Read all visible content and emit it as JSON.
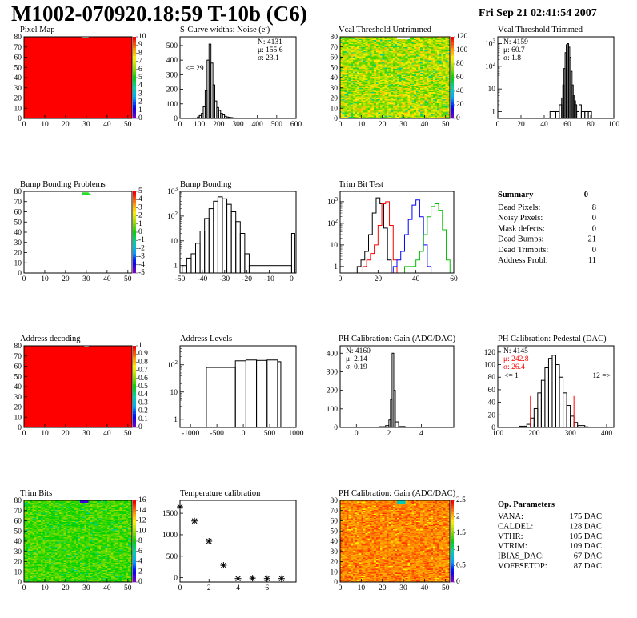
{
  "header": {
    "title": "M1002-070920.18:59 T-10b (C6)",
    "date": "Fri Sep 21 02:41:54 2007"
  },
  "chart_data": [
    {
      "id": "pixel_map",
      "type": "heatmap",
      "title": "Pixel Map",
      "xlim": [
        0,
        52
      ],
      "ylim": [
        0,
        80
      ],
      "xticks": [
        0,
        10,
        20,
        30,
        40,
        50
      ],
      "yticks": [
        0,
        10,
        20,
        30,
        40,
        50,
        60,
        70,
        80
      ],
      "palette_ticks": [
        "0",
        "1",
        "2",
        "3",
        "4",
        "5",
        "6",
        "7",
        "8",
        "9",
        "10"
      ],
      "palette_range": [
        0,
        10
      ],
      "dominant_value": 10,
      "dominant_color": "#ff0000",
      "missing_pixels": [
        [
          28,
          79
        ],
        [
          29,
          79
        ],
        [
          30,
          79
        ]
      ]
    },
    {
      "id": "scurve_widths",
      "type": "bar",
      "title": "S-Curve widths: Noise (e^{-})",
      "xlim": [
        0,
        600
      ],
      "ylim": [
        0,
        560
      ],
      "xticks": [
        0,
        100,
        200,
        300,
        400,
        500,
        600
      ],
      "yticks": [
        0,
        100,
        200,
        300,
        400,
        500
      ],
      "stats": {
        "N": "4131",
        "mean": "155.6",
        "sigma": "23.1"
      },
      "annotation": "<= 29",
      "x": [
        80,
        90,
        100,
        110,
        120,
        130,
        140,
        150,
        160,
        170,
        180,
        190,
        200,
        210,
        220,
        230,
        240,
        250,
        260,
        270,
        280,
        290,
        300,
        320,
        340,
        420,
        530
      ],
      "values": [
        0,
        10,
        20,
        35,
        80,
        190,
        400,
        510,
        380,
        230,
        120,
        75,
        55,
        35,
        25,
        15,
        10,
        8,
        6,
        4,
        3,
        2,
        2,
        1,
        1,
        1,
        1
      ]
    },
    {
      "id": "vcal_untrimmed",
      "type": "heatmap",
      "title": "Vcal Threshold Untrimmed",
      "xlim": [
        0,
        52
      ],
      "ylim": [
        0,
        80
      ],
      "xticks": [
        0,
        10,
        20,
        30,
        40,
        50
      ],
      "yticks": [
        0,
        10,
        20,
        30,
        40,
        50,
        60,
        70,
        80
      ],
      "palette_ticks": [
        "0",
        "20",
        "40",
        "60",
        "80",
        "100",
        "120"
      ],
      "palette_range": [
        0,
        120
      ],
      "value_range": [
        40,
        110
      ]
    },
    {
      "id": "vcal_trimmed",
      "type": "bar",
      "title": "Vcal Threshold Trimmed",
      "xlim": [
        0,
        100
      ],
      "ylog": true,
      "ylim": [
        0.5,
        2000
      ],
      "xticks": [
        0,
        20,
        40,
        60,
        80,
        100
      ],
      "ytick_labels": [
        "1",
        "10",
        "10^{2}",
        "10^{3}"
      ],
      "stats": {
        "N": "4159",
        "mean": "60.7",
        "sigma": "1.8"
      },
      "x": [
        45,
        50,
        53,
        55,
        56,
        57,
        58,
        59,
        60,
        61,
        62,
        63,
        64,
        65,
        66,
        67,
        68,
        70,
        72,
        75,
        78
      ],
      "values": [
        1,
        1,
        2,
        4,
        15,
        80,
        400,
        900,
        1000,
        700,
        250,
        60,
        15,
        5,
        3,
        2,
        1,
        2,
        1,
        1,
        1
      ]
    },
    {
      "id": "bump_bonding_problems",
      "type": "heatmap",
      "title": "Bump Bonding Problems",
      "xlim": [
        0,
        52
      ],
      "ylim": [
        0,
        80
      ],
      "xticks": [
        0,
        10,
        20,
        30,
        40,
        50
      ],
      "yticks": [
        0,
        10,
        20,
        30,
        40,
        50,
        60,
        70,
        80
      ],
      "palette_ticks": [
        "-5",
        "-4",
        "-3",
        "-2",
        "-1",
        "0",
        "1",
        "2",
        "3",
        "4",
        "5"
      ],
      "palette_range": [
        -5,
        5
      ],
      "problem_pixels": [
        [
          28,
          78
        ],
        [
          29,
          78
        ],
        [
          30,
          78
        ],
        [
          28,
          77
        ],
        [
          29,
          77
        ],
        [
          30,
          77
        ],
        [
          31,
          77
        ]
      ]
    },
    {
      "id": "bump_bonding",
      "type": "bar",
      "title": "Bump Bonding",
      "xlim": [
        -50,
        2
      ],
      "ylog": true,
      "ylim": [
        0.5,
        1000
      ],
      "xticks": [
        -50,
        -40,
        -30,
        -20,
        -10,
        0
      ],
      "ytick_labels": [
        "1",
        "10",
        "10^{2}",
        "10^{3}"
      ],
      "x": [
        -49,
        -47,
        -45,
        -43,
        -41,
        -39,
        -37,
        -35,
        -33,
        -31,
        -29,
        -27,
        -25,
        -23,
        -21,
        -19,
        0
      ],
      "values": [
        1,
        2,
        3,
        8,
        25,
        80,
        200,
        400,
        600,
        500,
        300,
        150,
        60,
        20,
        3,
        1,
        20
      ]
    },
    {
      "id": "trim_bit_test",
      "type": "line",
      "title": "Trim Bit Test",
      "xlim": [
        0,
        60
      ],
      "ylog": true,
      "ylim": [
        0.5,
        3000
      ],
      "xticks": [
        0,
        20,
        40,
        60
      ],
      "ytick_labels": [
        "1",
        "10",
        "10^{2}",
        "10^{3}"
      ],
      "series": [
        {
          "color": "#000000",
          "x": [
            9,
            11,
            13,
            15,
            17,
            19,
            21,
            23,
            25
          ],
          "values": [
            1,
            2,
            5,
            30,
            300,
            1500,
            800,
            60,
            2
          ]
        },
        {
          "color": "#ff0000",
          "x": [
            12,
            14,
            16,
            18,
            20,
            22,
            24,
            26,
            28
          ],
          "values": [
            1,
            2,
            4,
            10,
            80,
            800,
            1000,
            80,
            2
          ]
        },
        {
          "color": "#0000ff",
          "x": [
            28,
            30,
            32,
            34,
            36,
            38,
            40,
            42,
            44,
            46
          ],
          "values": [
            1,
            2,
            5,
            30,
            150,
            700,
            1200,
            200,
            10,
            1
          ]
        },
        {
          "color": "#00c000",
          "x": [
            34,
            37,
            40,
            42,
            44,
            46,
            48,
            50,
            52,
            54,
            56
          ],
          "values": [
            1,
            1,
            2,
            5,
            30,
            200,
            600,
            800,
            400,
            50,
            2
          ]
        }
      ]
    },
    {
      "id": "address_decoding",
      "type": "heatmap",
      "title": "Address decoding",
      "xlim": [
        0,
        52
      ],
      "ylim": [
        0,
        80
      ],
      "xticks": [
        0,
        10,
        20,
        30,
        40,
        50
      ],
      "yticks": [
        0,
        10,
        20,
        30,
        40,
        50,
        60,
        70,
        80
      ],
      "palette_ticks": [
        "0",
        "0.1",
        "0.2",
        "0.3",
        "0.4",
        "0.5",
        "0.6",
        "0.7",
        "0.8",
        "0.9",
        "1"
      ],
      "palette_range": [
        0,
        1
      ],
      "dominant_value": 1,
      "dominant_color": "#ff0000",
      "missing_pixels": [
        [
          29,
          79
        ],
        [
          30,
          79
        ]
      ]
    },
    {
      "id": "address_levels",
      "type": "bar",
      "title": "Address Levels",
      "xlim": [
        -1200,
        1000
      ],
      "ylog": true,
      "ylim": [
        0.5,
        500
      ],
      "xticks": [
        -1000,
        -500,
        0,
        500,
        1000
      ],
      "ytick_labels": [
        "1",
        "10",
        "10^{2}"
      ],
      "x": [
        -700,
        -150,
        50,
        250,
        450,
        650
      ],
      "values": [
        80,
        140,
        150,
        145,
        150,
        130
      ]
    },
    {
      "id": "ph_gain",
      "type": "bar",
      "title": "PH Calibration: Gain (ADC/DAC)",
      "xlim": [
        -1,
        6
      ],
      "ylim": [
        0,
        440
      ],
      "xticks": [
        0,
        2,
        4
      ],
      "yticks": [
        0,
        100,
        200,
        300,
        400
      ],
      "stats": {
        "N": "4160",
        "mean": "2.14",
        "sigma": "0.19"
      },
      "x": [
        1.0,
        1.4,
        1.8,
        2.0,
        2.1,
        2.2,
        2.3,
        2.4,
        2.6,
        3.0
      ],
      "values": [
        2,
        4,
        10,
        40,
        150,
        400,
        200,
        30,
        5,
        1
      ]
    },
    {
      "id": "ph_pedestal",
      "type": "bar",
      "title": "PH Calibration: Pedestal (DAC)",
      "xlim": [
        100,
        420
      ],
      "ylim": [
        0,
        130
      ],
      "xticks": [
        100,
        200,
        300,
        400
      ],
      "yticks": [
        0,
        20,
        40,
        60,
        80,
        100,
        120
      ],
      "stats": {
        "N": "4145",
        "mean": "242.8",
        "sigma": "26.4"
      },
      "annotations": [
        "<= 1",
        "12 =>"
      ],
      "x": [
        160,
        180,
        190,
        200,
        210,
        220,
        230,
        240,
        250,
        260,
        270,
        280,
        290,
        300,
        310,
        320,
        340
      ],
      "values": [
        2,
        5,
        15,
        30,
        55,
        75,
        95,
        110,
        115,
        100,
        80,
        55,
        35,
        18,
        8,
        3,
        1
      ]
    },
    {
      "id": "trim_bits",
      "type": "heatmap",
      "title": "Trim Bits",
      "xlim": [
        0,
        52
      ],
      "ylim": [
        0,
        80
      ],
      "xticks": [
        0,
        10,
        20,
        30,
        40,
        50
      ],
      "yticks": [
        0,
        10,
        20,
        30,
        40,
        50,
        60,
        70,
        80
      ],
      "palette_ticks": [
        "0",
        "2",
        "4",
        "6",
        "8",
        "10",
        "12",
        "14",
        "16"
      ],
      "palette_range": [
        0,
        16
      ],
      "value_range": [
        6,
        11
      ]
    },
    {
      "id": "temperature_calibration",
      "type": "scatter",
      "title": "Temperature calibration",
      "xlim": [
        0,
        8
      ],
      "ylim": [
        -100,
        1800
      ],
      "xticks": [
        0,
        2,
        4,
        6
      ],
      "yticks": [
        0,
        500,
        1000,
        1500
      ],
      "x": [
        0,
        1,
        2,
        3,
        4,
        5,
        6,
        7
      ],
      "values": [
        1650,
        1320,
        850,
        290,
        -20,
        -10,
        -20,
        -20
      ]
    },
    {
      "id": "ph_gain_map",
      "type": "heatmap",
      "title": "PH Calibration: Gain (ADC/DAC)",
      "xlim": [
        0,
        52
      ],
      "ylim": [
        0,
        80
      ],
      "xticks": [
        0,
        10,
        20,
        30,
        40,
        50
      ],
      "yticks": [
        0,
        10,
        20,
        30,
        40,
        50,
        60,
        70,
        80
      ],
      "palette_ticks": [
        "0",
        "0.5",
        "1",
        "1.5",
        "2",
        "2.5"
      ],
      "palette_range": [
        0,
        2.5
      ],
      "value_range": [
        1.8,
        2.5
      ]
    }
  ],
  "summary": {
    "title": "Summary",
    "value": "0",
    "rows": [
      {
        "label": "Dead Pixels:",
        "value": "8"
      },
      {
        "label": "Noisy Pixels:",
        "value": "0"
      },
      {
        "label": "Mask defects:",
        "value": "0"
      },
      {
        "label": "Dead Bumps:",
        "value": "21"
      },
      {
        "label": "Dead Trimbits:",
        "value": "0"
      },
      {
        "label": "Address Probl:",
        "value": "11"
      }
    ]
  },
  "op_params": {
    "title": "Op. Parameters",
    "rows": [
      {
        "label": "VANA:",
        "value": "175 DAC"
      },
      {
        "label": "CALDEL:",
        "value": "128 DAC"
      },
      {
        "label": "VTHR:",
        "value": "105 DAC"
      },
      {
        "label": "VTRIM:",
        "value": "109 DAC"
      },
      {
        "label": "IBIAS_DAC:",
        "value": "67 DAC"
      },
      {
        "label": "VOFFSETOP:",
        "value": "87 DAC"
      }
    ]
  }
}
